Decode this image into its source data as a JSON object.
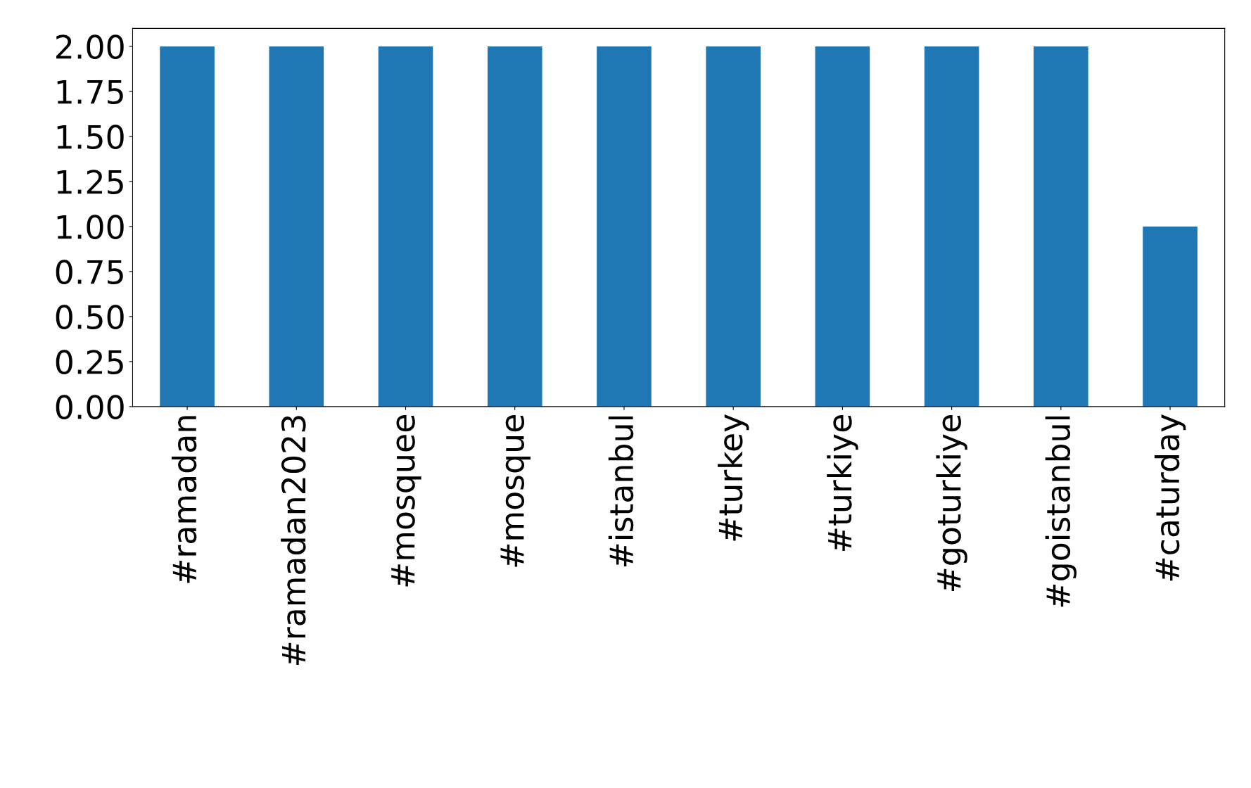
{
  "chart_data": {
    "type": "bar",
    "categories": [
      "#ramadan",
      "#ramadan2023",
      "#mosquee",
      "#mosque",
      "#istanbul",
      "#turkey",
      "#turkiye",
      "#goturkiye",
      "#goistanbul",
      "#caturday"
    ],
    "values": [
      2,
      2,
      2,
      2,
      2,
      2,
      2,
      2,
      2,
      1
    ],
    "color": "#1f77b4",
    "ylim": [
      0,
      2.1
    ],
    "yticks": [
      {
        "value": 0,
        "label": "0.00"
      },
      {
        "value": 0.25,
        "label": "0.25"
      },
      {
        "value": 0.5,
        "label": "0.50"
      },
      {
        "value": 0.75,
        "label": "0.75"
      },
      {
        "value": 1,
        "label": "1.00"
      },
      {
        "value": 1.25,
        "label": "1.25"
      },
      {
        "value": 1.5,
        "label": "1.50"
      },
      {
        "value": 1.75,
        "label": "1.75"
      },
      {
        "value": 2,
        "label": "2.00"
      }
    ],
    "grid": false,
    "legend": false
  }
}
